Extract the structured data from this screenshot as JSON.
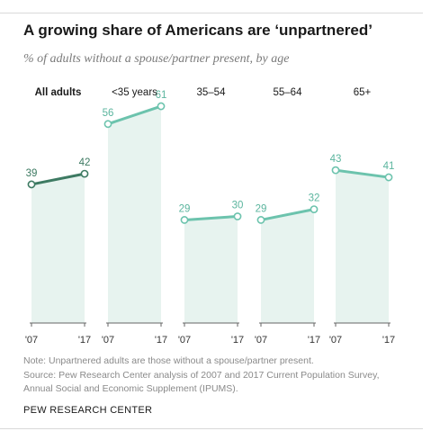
{
  "title": "A growing share of Americans are ‘unpartnered’",
  "subtitle": "% of adults without a spouse/partner present, by age",
  "note": "Note: Unpartnered adults are those without a spouse/partner present.",
  "source": "Source: Pew Research Center analysis of 2007 and 2017 Current Population Survey, Annual Social and Economic Supplement (IPUMS).",
  "brand": "PEW RESEARCH CENTER",
  "colors": {
    "dark_line": "#3d7a62",
    "light_line": "#6cc3ad",
    "fill": "#e7f3ef",
    "label_dark": "#3d7a62",
    "label_light": "#5bb59e"
  },
  "chart_data": {
    "type": "line",
    "x": [
      "'07",
      "'17"
    ],
    "ylim": [
      0,
      70
    ],
    "grid": false,
    "panels": [
      {
        "label": "All adults",
        "values": [
          39,
          42
        ],
        "highlight": true
      },
      {
        "label": "<35 years",
        "values": [
          56,
          61
        ],
        "highlight": false
      },
      {
        "label": "35–54",
        "values": [
          29,
          30
        ],
        "highlight": false
      },
      {
        "label": "55–64",
        "values": [
          29,
          32
        ],
        "highlight": false
      },
      {
        "label": "65+",
        "values": [
          43,
          41
        ],
        "highlight": false
      }
    ]
  }
}
